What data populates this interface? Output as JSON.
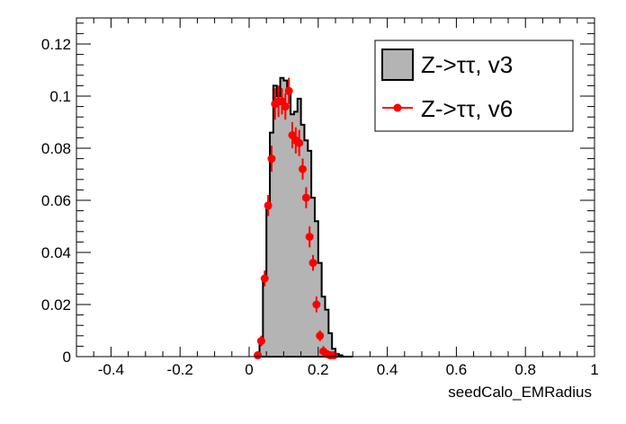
{
  "chart_data": {
    "type": "histogram",
    "xlabel": "seedCalo_EMRadius",
    "ylabel": "",
    "xlim": [
      -0.5,
      1.0
    ],
    "ylim": [
      0,
      0.13
    ],
    "x_ticks": [
      -0.4,
      -0.2,
      0,
      0.2,
      0.4,
      0.6,
      0.8,
      1
    ],
    "x_tick_labels": [
      "-0.4",
      "-0.2",
      "0",
      "0.2",
      "0.4",
      "0.6",
      "0.8",
      "1"
    ],
    "y_ticks": [
      0,
      0.02,
      0.04,
      0.06,
      0.08,
      0.1,
      0.12
    ],
    "y_tick_labels": [
      "0",
      "0.02",
      "0.04",
      "0.06",
      "0.08",
      "0.1",
      "0.12"
    ],
    "grid": false,
    "legend_position": "top-right",
    "series": [
      {
        "name": "Z->ττ, v3",
        "style": "filled-histogram",
        "fill_color": "#b4b4b4",
        "line_color": "#000000",
        "bin_edges": [
          0.02,
          0.03,
          0.04,
          0.05,
          0.06,
          0.07,
          0.08,
          0.09,
          0.1,
          0.11,
          0.12,
          0.13,
          0.14,
          0.15,
          0.16,
          0.17,
          0.18,
          0.19,
          0.2,
          0.21,
          0.22,
          0.23,
          0.24,
          0.25,
          0.26,
          0.27,
          0.28,
          0.29,
          0.3
        ],
        "values": [
          0.001,
          0.006,
          0.03,
          0.057,
          0.086,
          0.104,
          0.1,
          0.107,
          0.106,
          0.101,
          0.093,
          0.094,
          0.099,
          0.089,
          0.083,
          0.079,
          0.061,
          0.052,
          0.036,
          0.023,
          0.018,
          0.009,
          0.003,
          0.001,
          0.0005,
          0,
          0,
          0
        ]
      },
      {
        "name": "Z->ττ, v6",
        "style": "points-with-errors",
        "color": "#ff0000",
        "x": [
          0.025,
          0.035,
          0.045,
          0.055,
          0.065,
          0.075,
          0.085,
          0.095,
          0.105,
          0.115,
          0.125,
          0.135,
          0.145,
          0.155,
          0.165,
          0.175,
          0.185,
          0.195,
          0.205,
          0.215,
          0.225,
          0.235,
          0.245,
          0.255,
          0.265,
          0.275,
          0.285
        ],
        "values": [
          0.0005,
          0.006,
          0.03,
          0.058,
          0.076,
          0.097,
          0.098,
          0.098,
          0.096,
          0.102,
          0.085,
          0.083,
          0.082,
          0.072,
          0.061,
          0.046,
          0.036,
          0.02,
          0.008,
          0.002,
          0.001,
          0.0005,
          0.0005,
          0,
          0,
          0,
          0
        ],
        "errors": [
          0.0005,
          0.001,
          0.002,
          0.003,
          0.004,
          0.005,
          0.005,
          0.004,
          0.004,
          0.004,
          0.004,
          0.004,
          0.004,
          0.003,
          0.003,
          0.003,
          0.002,
          0.002,
          0.001,
          0.001,
          0.0005,
          0.0005,
          0.0005,
          0,
          0,
          0,
          0
        ]
      }
    ]
  }
}
